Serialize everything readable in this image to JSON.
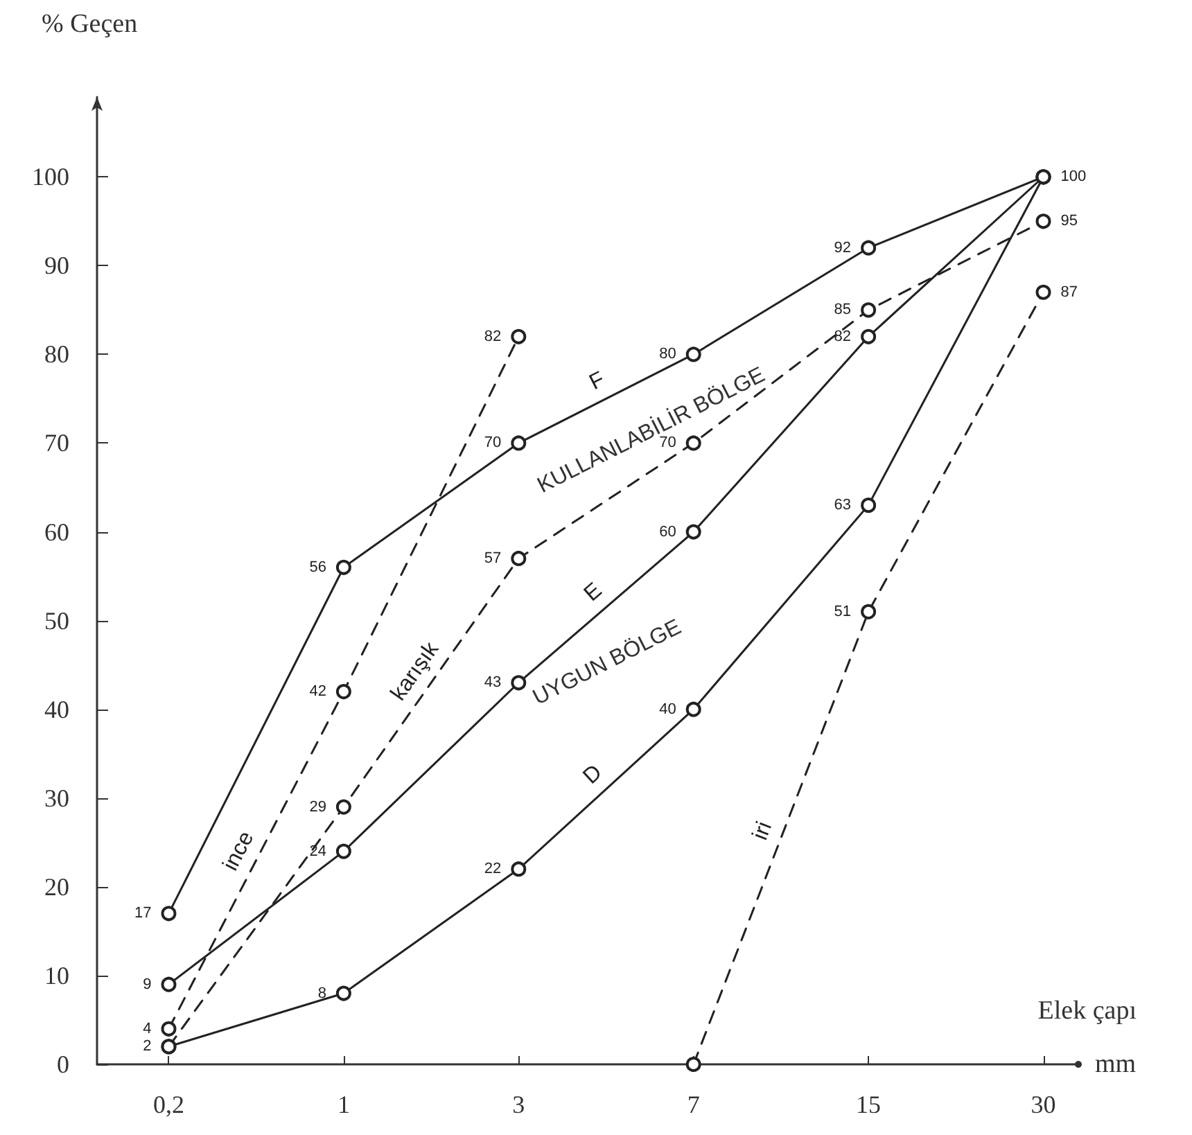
{
  "chart_data": {
    "type": "line",
    "ylabel": "% Geçen",
    "xlabel": "Elek çapı",
    "annotations": [
      "mm",
      "KULLANLABİLİR BÖLGE",
      "UYGUN BÖLGE"
    ],
    "categories": [
      "0,2",
      "1",
      "3",
      "7",
      "15",
      "30"
    ],
    "ylim": [
      0,
      109
    ],
    "yticks": [
      0,
      10,
      20,
      30,
      40,
      50,
      60,
      70,
      80,
      90,
      100
    ],
    "marker": "circle",
    "series": [
      {
        "name": "F",
        "color": "#222222",
        "values": [
          17,
          56,
          70,
          80,
          92,
          100
        ],
        "value_labels": [
          "17",
          "56",
          "70",
          "80",
          "92",
          "100"
        ],
        "line_style": "solid"
      },
      {
        "name": "E",
        "color": "#222222",
        "values": [
          9,
          24,
          43,
          60,
          82,
          100
        ],
        "value_labels": [
          "9",
          "24",
          "43",
          "60",
          "82",
          null
        ],
        "line_style": "solid"
      },
      {
        "name": "D",
        "color": "#222222",
        "values": [
          2,
          8,
          22,
          40,
          63,
          100
        ],
        "value_labels": [
          "2",
          "8",
          "22",
          "40",
          "63",
          null
        ],
        "line_style": "solid"
      },
      {
        "name": "ince",
        "color": "#222222",
        "values": [
          4,
          42,
          82,
          null,
          null,
          null
        ],
        "value_labels": [
          "4",
          "42",
          "82",
          null,
          null,
          null
        ],
        "line_style": "dashed"
      },
      {
        "name": "karışık",
        "color": "#222222",
        "values": [
          2,
          29,
          57,
          70,
          85,
          95
        ],
        "value_labels": [
          null,
          "29",
          "57",
          "70",
          "85",
          "95"
        ],
        "line_style": "dashed"
      },
      {
        "name": "iri",
        "color": "#222222",
        "values": [
          null,
          null,
          null,
          0,
          51,
          87
        ],
        "value_labels": [
          null,
          null,
          null,
          null,
          "51",
          "87"
        ],
        "line_style": "dashed"
      }
    ]
  }
}
